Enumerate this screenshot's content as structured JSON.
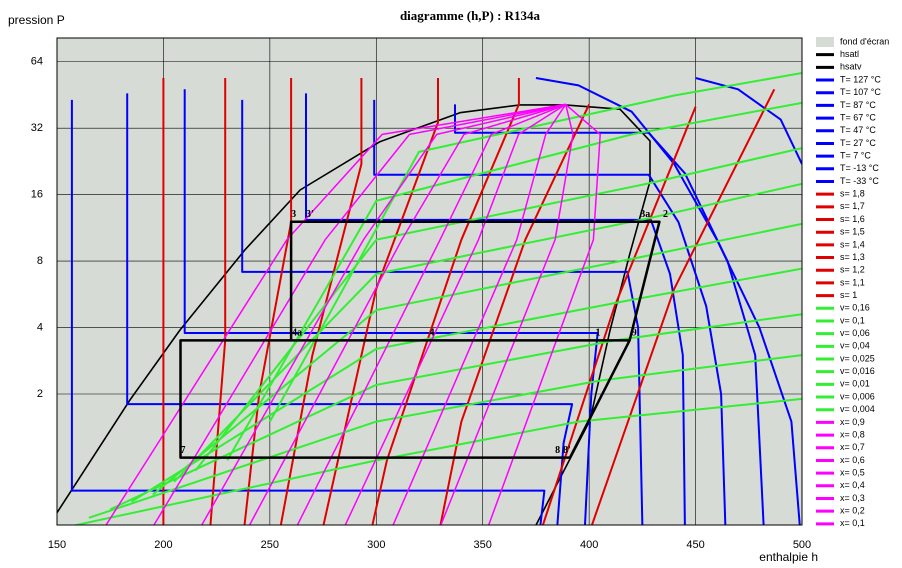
{
  "chart_data": {
    "type": "line",
    "title": "diagramme (h,P) : R134a",
    "x_label": "enthalpie  h",
    "y_label": "pression  P",
    "xlim": [
      150,
      500
    ],
    "xticks": [
      150,
      200,
      250,
      300,
      350,
      400,
      450,
      500
    ],
    "ylim": [
      0.51,
      82
    ],
    "yticks": [
      2,
      4,
      8,
      16,
      32,
      64
    ],
    "y_log_base": 2,
    "grid": true,
    "background": {
      "name": "fond d'écran",
      "color": "#d6dbd6"
    },
    "series": [
      {
        "name": "hsatl",
        "color": "#000000",
        "x": [
          150,
          184.3,
          207.8,
          238.3,
          264.2,
          301.7,
          339.3,
          367.5,
          388.7
        ],
        "values": [
          0.58,
          1.88,
          3.9,
          9.0,
          16.8,
          27.8,
          37.6,
          40.8,
          40.8
        ]
      },
      {
        "name": "hsatv",
        "color": "#000000",
        "x": [
          388.7,
          414.5,
          428.6,
          428.6,
          419.2,
          409.8,
          400.4,
          386.3,
          374.6
        ],
        "values": [
          40.8,
          39.0,
          28.0,
          18.4,
          8.7,
          3.88,
          1.52,
          0.83,
          0.5
        ]
      },
      {
        "name": "T= 127 °C",
        "color": "#0000ff",
        "x": [
          450,
          470,
          490,
          500
        ],
        "values": [
          54,
          48,
          35,
          22
        ]
      },
      {
        "name": "T= 107 °C",
        "color": "#0000ff",
        "x": [
          375,
          395,
          420,
          440,
          460,
          480,
          495,
          499
        ],
        "values": [
          54,
          50,
          38,
          22,
          10,
          4,
          1.5,
          0.5
        ]
      },
      {
        "name": "T= 87 °C",
        "color": "#0000ff",
        "x": [
          337,
          337,
          428,
          445,
          465,
          478,
          482
        ],
        "values": [
          41,
          30.5,
          30.5,
          20,
          8,
          3,
          0.5
        ]
      },
      {
        "name": "T= 67 °C",
        "color": "#0000ff",
        "x": [
          299,
          299,
          428,
          442,
          455,
          462,
          464
        ],
        "values": [
          43,
          19.7,
          19.7,
          12,
          5,
          2,
          0.5
        ]
      },
      {
        "name": "T= 47 °C",
        "color": "#0000ff",
        "x": [
          267,
          267,
          429,
          438,
          444,
          445
        ],
        "values": [
          46,
          12.3,
          12.3,
          7,
          3,
          0.5
        ]
      },
      {
        "name": "T= 27 °C",
        "color": "#0000ff",
        "x": [
          237,
          237,
          418,
          423,
          425
        ],
        "values": [
          43,
          7.15,
          7.15,
          4,
          0.5
        ]
      },
      {
        "name": "T= 7 °C",
        "color": "#0000ff",
        "x": [
          210,
          210,
          404,
          401,
          398
        ],
        "values": [
          48,
          3.78,
          3.78,
          2,
          0.5
        ]
      },
      {
        "name": "T= -13 °C",
        "color": "#0000ff",
        "x": [
          183,
          183,
          392,
          388,
          385
        ],
        "values": [
          46,
          1.8,
          1.8,
          1.2,
          0.5
        ]
      },
      {
        "name": "T= -33 °C",
        "color": "#0000ff",
        "x": [
          157,
          157,
          379,
          377
        ],
        "values": [
          43,
          0.73,
          0.73,
          0.5
        ]
      },
      {
        "name": "s= 1,8",
        "color": "#e00000",
        "x": [
          401,
          440,
          487
        ],
        "values": [
          0.5,
          6,
          48
        ]
      },
      {
        "name": "s= 1,7",
        "color": "#e00000",
        "x": [
          378,
          412,
          450
        ],
        "values": [
          0.5,
          5,
          40
        ]
      },
      {
        "name": "s= 1,6",
        "color": "#e00000",
        "x": [
          400,
          370,
          340,
          330
        ],
        "values": [
          41,
          10,
          1.5,
          0.5
        ]
      },
      {
        "name": "s= 1,5",
        "color": "#e00000",
        "x": [
          367,
          367,
          340,
          305,
          298
        ],
        "values": [
          54,
          41,
          10,
          1,
          0.5
        ]
      },
      {
        "name": "s= 1,4",
        "color": "#e00000",
        "x": [
          329,
          329,
          300,
          275
        ],
        "values": [
          54,
          34,
          6,
          0.5
        ]
      },
      {
        "name": "s= 1,3",
        "color": "#e00000",
        "x": [
          293,
          293,
          270,
          255
        ],
        "values": [
          54,
          22,
          3,
          0.5
        ]
      },
      {
        "name": "s= 1,2",
        "color": "#e00000",
        "x": [
          260,
          260,
          245,
          238
        ],
        "values": [
          54,
          12,
          2,
          0.5
        ]
      },
      {
        "name": "s= 1,1",
        "color": "#e00000",
        "x": [
          229,
          229,
          222
        ],
        "values": [
          54,
          3.5,
          0.5
        ]
      },
      {
        "name": "s= 1",
        "color": "#e00000",
        "x": [
          200,
          200
        ],
        "values": [
          54,
          0.5
        ]
      },
      {
        "name": "v= 0,16",
        "color": "#33ee33",
        "x": [
          155,
          300,
          395,
          500
        ],
        "values": [
          0.5,
          1.0,
          1.5,
          1.9
        ]
      },
      {
        "name": "v= 0,1",
        "color": "#33ee33",
        "x": [
          165,
          300,
          405,
          500
        ],
        "values": [
          0.55,
          1.5,
          2.3,
          3.0
        ]
      },
      {
        "name": "v= 0,06",
        "color": "#33ee33",
        "x": [
          175,
          300,
          412,
          500
        ],
        "values": [
          0.6,
          2.2,
          3.5,
          4.6
        ]
      },
      {
        "name": "v= 0,04",
        "color": "#33ee33",
        "x": [
          185,
          300,
          418,
          500
        ],
        "values": [
          0.65,
          3.2,
          5.3,
          7.4
        ]
      },
      {
        "name": "v= 0,025",
        "color": "#33ee33",
        "x": [
          195,
          300,
          423,
          500
        ],
        "values": [
          0.7,
          4.8,
          8.3,
          11.8
        ]
      },
      {
        "name": "v= 0,016",
        "color": "#33ee33",
        "x": [
          205,
          300,
          428,
          500
        ],
        "values": [
          0.8,
          7,
          12.5,
          17.9
        ]
      },
      {
        "name": "v= 0,01",
        "color": "#33ee33",
        "x": [
          215,
          300,
          428,
          500
        ],
        "values": [
          0.9,
          10,
          18,
          26
        ]
      },
      {
        "name": "v= 0,006",
        "color": "#33ee33",
        "x": [
          230,
          300,
          420,
          500
        ],
        "values": [
          1,
          15,
          30,
          41.7
        ]
      },
      {
        "name": "v= 0,004",
        "color": "#33ee33",
        "x": [
          250,
          320,
          440,
          500
        ],
        "values": [
          1.5,
          25,
          45,
          56.9
        ]
      },
      {
        "name": "x= 0,9",
        "color": "#ff00ff",
        "x": [
          352.5,
          402,
          405.2,
          389
        ],
        "values": [
          0.5,
          10,
          30,
          41
        ]
      },
      {
        "name": "x= 0,8",
        "color": "#ff00ff",
        "x": [
          330,
          384,
          392.4,
          389
        ],
        "values": [
          0.5,
          10,
          30,
          41
        ]
      },
      {
        "name": "x= 0,7",
        "color": "#ff00ff",
        "x": [
          307.5,
          366,
          379.6,
          389
        ],
        "values": [
          0.5,
          10,
          30,
          41
        ]
      },
      {
        "name": "x= 0,6",
        "color": "#ff00ff",
        "x": [
          285,
          348,
          366.8,
          389
        ],
        "values": [
          0.5,
          10,
          30,
          41
        ]
      },
      {
        "name": "x= 0,5",
        "color": "#ff00ff",
        "x": [
          262.5,
          330,
          354,
          389
        ],
        "values": [
          0.5,
          10,
          30,
          41
        ]
      },
      {
        "name": "x= 0,4",
        "color": "#ff00ff",
        "x": [
          240,
          312,
          341.2,
          389
        ],
        "values": [
          0.5,
          10,
          30,
          41
        ]
      },
      {
        "name": "x= 0,3",
        "color": "#ff00ff",
        "x": [
          217.5,
          294,
          328.4,
          389
        ],
        "values": [
          0.5,
          10,
          30,
          41
        ]
      },
      {
        "name": "x= 0,2",
        "color": "#ff00ff",
        "x": [
          195,
          276,
          315.6,
          389
        ],
        "values": [
          0.5,
          10,
          30,
          41
        ]
      },
      {
        "name": "x= 0,1",
        "color": "#ff00ff",
        "x": [
          172.5,
          258,
          302.8,
          389
        ],
        "values": [
          0.5,
          10,
          30,
          41
        ]
      }
    ],
    "cycle": {
      "color": "#000000",
      "x": [
        260,
        260,
        433,
        419,
        208,
        208,
        391,
        419
      ],
      "values": [
        3.5,
        12.06,
        12.06,
        3.5,
        3.5,
        1.03,
        1.03,
        3.5
      ],
      "point_labels": [
        {
          "label": "3",
          "h": 260,
          "p": 12.06
        },
        {
          "label": "3'",
          "h": 267,
          "p": 12.06
        },
        {
          "label": "3a",
          "h": 424,
          "p": 12.06
        },
        {
          "label": "2",
          "h": 434.7,
          "p": 12.06
        },
        {
          "label": "4a",
          "h": 260.4,
          "p": 3.5
        },
        {
          "label": "4",
          "h": 325,
          "p": 3.5
        },
        {
          "label": "1",
          "h": 403,
          "p": 3.5
        },
        {
          "label": "9",
          "h": 420,
          "p": 3.5
        },
        {
          "label": "7",
          "h": 208,
          "p": 1.03
        },
        {
          "label": "8",
          "h": 384,
          "p": 1.03
        },
        {
          "label": "8'",
          "h": 387.7,
          "p": 1.03
        }
      ]
    }
  }
}
